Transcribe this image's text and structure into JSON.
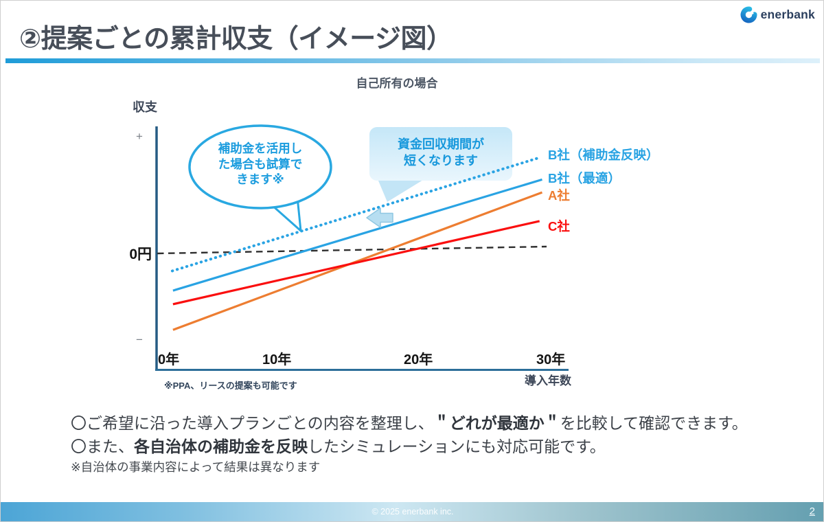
{
  "header": {
    "title": "②提案ごとの累計収支（イメージ図）",
    "logo_text": "enerbank"
  },
  "chart_data": {
    "type": "line",
    "title": "自己所有の場合",
    "xlabel": "導入年数",
    "ylabel": "収支",
    "x_ticks": [
      {
        "label": "0年",
        "year": 0
      },
      {
        "label": "10年",
        "year": 10
      },
      {
        "label": "20年",
        "year": 20
      },
      {
        "label": "30年",
        "year": 30
      }
    ],
    "xlim_years": [
      0,
      31
    ],
    "y_axis_marks": {
      "plus": "+",
      "minus": "−",
      "zero": "0円"
    },
    "zero_line": {
      "value": 0,
      "style": "dashed",
      "color": "#2e2e2e",
      "label": "0円"
    },
    "value_units": "relative cumulative balance (conceptual diagram, no numeric y scale)",
    "grid": false,
    "legend_position": "right-of-line-ends",
    "series": [
      {
        "name": "B社（補助金反映）",
        "color": "#29a3e3",
        "style": "dotted",
        "points_year_value": [
          [
            1.2,
            -0.25
          ],
          [
            29.2,
            1.25
          ]
        ],
        "breakeven_year_approx": 6
      },
      {
        "name": "B社（最適）",
        "color": "#29a3e3",
        "style": "solid",
        "points_year_value": [
          [
            1.25,
            -0.51
          ],
          [
            29.4,
            0.96
          ]
        ],
        "breakeven_year_approx": 11
      },
      {
        "name": "A社",
        "color": "#ed7d31",
        "style": "solid",
        "points_year_value": [
          [
            1.25,
            -1.03
          ],
          [
            29.4,
            0.79
          ]
        ],
        "breakeven_year_approx": 17
      },
      {
        "name": "C社",
        "color": "#fa0f0f",
        "style": "solid",
        "points_year_value": [
          [
            1.25,
            -0.69
          ],
          [
            29.2,
            0.41
          ]
        ],
        "breakeven_year_approx": 20
      }
    ]
  },
  "annotations": {
    "bubble_line1": "補助金を活用し",
    "bubble_line2": "た場合も試算で",
    "bubble_line3": "きます※",
    "callout_line1": "資金回収期間が",
    "callout_line2": "短くなります",
    "note_under_axis": "※PPA、リースの提案も可能です"
  },
  "body": {
    "line1_pre": "〇ご希望に沿った導入プランごとの内容を整理し、",
    "line1_em": "＂どれが最適か＂",
    "line1_post": "を比較して確認できます。",
    "line2_pre": "〇また、",
    "line2_em": "各自治体の補助金を反映",
    "line2_post": "したシミュレーションにも対応可能です。",
    "line3": "※自治体の事業内容によって結果は異なります"
  },
  "footer": {
    "copyright": "© 2025 enerbank inc.",
    "page_number": "2"
  },
  "colors": {
    "accent_blue": "#29a3e3",
    "orange": "#ed7d31",
    "red": "#fa0f0f",
    "title_text": "#474e59",
    "axis_blue": "#2c6e99",
    "footer_teal": "#649fb0",
    "bubble_outline": "#29a8e1",
    "callout_fill": "#c9e9f9"
  }
}
